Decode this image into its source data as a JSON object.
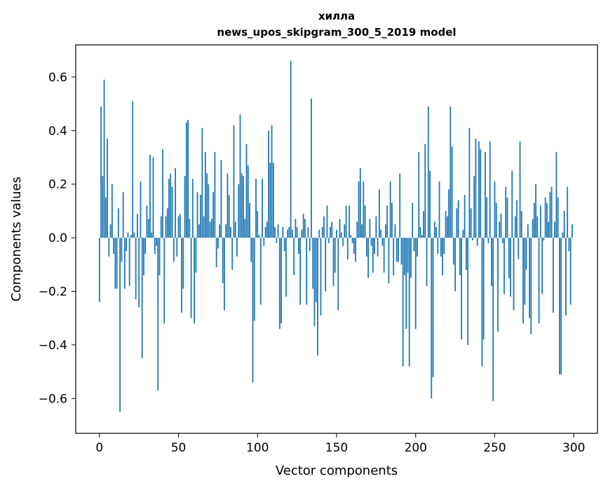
{
  "chart_data": {
    "type": "bar",
    "title": "хилла",
    "subtitle": "news_upos_skipgram_300_5_2019 model",
    "xlabel": "Vector components",
    "ylabel": "Components values",
    "xlim": [
      -15,
      315
    ],
    "ylim": [
      -0.73,
      0.72
    ],
    "xticks": [
      0,
      50,
      100,
      150,
      200,
      250,
      300
    ],
    "yticks": [
      -0.6,
      -0.4,
      -0.2,
      0.0,
      0.2,
      0.4,
      0.6
    ],
    "xtick_labels": [
      "0",
      "50",
      "100",
      "150",
      "200",
      "250",
      "300"
    ],
    "ytick_labels": [
      "−0.6",
      "−0.4",
      "−0.2",
      "0.0",
      "0.2",
      "0.4",
      "0.6"
    ],
    "bar_color": "#1f77b4",
    "grid": false,
    "x": "0..299",
    "values": [
      -0.24,
      0.49,
      0.23,
      0.59,
      0.15,
      0.37,
      -0.07,
      0.05,
      0.2,
      -0.06,
      -0.19,
      -0.19,
      0.11,
      -0.65,
      -0.09,
      0.17,
      -0.19,
      -0.05,
      0.02,
      -0.18,
      0.01,
      0.51,
      0.02,
      -0.23,
      0.09,
      -0.26,
      0.21,
      -0.45,
      -0.14,
      -0.06,
      0.12,
      0.07,
      0.31,
      0.02,
      0.3,
      -0.06,
      -0.03,
      -0.57,
      -0.14,
      0.08,
      0.33,
      -0.32,
      0.08,
      0.11,
      0.22,
      0.24,
      0.19,
      -0.09,
      0.26,
      -0.07,
      0.08,
      0.09,
      -0.28,
      -0.19,
      0.23,
      0.43,
      0.44,
      0.07,
      -0.3,
      0.22,
      -0.32,
      -0.13,
      0.17,
      0.05,
      0.16,
      0.41,
      0.08,
      0.32,
      0.24,
      0.2,
      0.06,
      0.07,
      0.17,
      0.32,
      -0.11,
      -0.04,
      0.05,
      0.29,
      -0.17,
      -0.27,
      0.05,
      0.24,
      0.16,
      0.04,
      -0.12,
      0.42,
      0.06,
      -0.07,
      0.2,
      0.46,
      0.24,
      0.23,
      0.07,
      0.35,
      0.27,
      0.13,
      -0.09,
      -0.54,
      -0.31,
      0.22,
      0.1,
      0.01,
      -0.25,
      0.22,
      -0.03,
      0.04,
      0.06,
      0.4,
      0.28,
      0.42,
      0.28,
      0.04,
      -0.02,
      0.05,
      -0.34,
      -0.32,
      0.04,
      -0.05,
      -0.22,
      0.03,
      0.04,
      0.66,
      0.03,
      -0.14,
      0.07,
      0.04,
      -0.06,
      -0.25,
      0.03,
      0.09,
      0.07,
      -0.25,
      0.04,
      -0.05,
      0.52,
      -0.19,
      -0.33,
      -0.24,
      -0.44,
      0.03,
      -0.29,
      0.04,
      0.08,
      -0.2,
      0.12,
      -0.02,
      0.04,
      0.06,
      -0.18,
      -0.13,
      0.03,
      -0.27,
      0.07,
      0.02,
      -0.03,
      0.05,
      0.12,
      -0.08,
      0.12,
      0.01,
      -0.02,
      -0.06,
      -0.09,
      0.06,
      0.21,
      0.26,
      0.05,
      0.21,
      0.12,
      -0.07,
      -0.15,
      0.07,
      -0.03,
      -0.13,
      -0.06,
      0.08,
      -0.07,
      0.18,
      0.03,
      -0.03,
      -0.13,
      0.05,
      0.12,
      -0.17,
      0.21,
      0.13,
      -0.14,
      0.05,
      -0.09,
      -0.09,
      0.24,
      -0.1,
      -0.48,
      -0.14,
      -0.34,
      -0.13,
      -0.48,
      -0.15,
      0.13,
      -0.05,
      -0.34,
      -0.07,
      0.32,
      0.04,
      0.01,
      0.1,
      0.35,
      -0.18,
      0.49,
      0.25,
      -0.6,
      -0.52,
      0.06,
      0.04,
      -0.06,
      0.21,
      -0.07,
      -0.14,
      -0.06,
      0.1,
      0.08,
      0.18,
      0.49,
      0.34,
      -0.1,
      -0.2,
      0.11,
      0.14,
      -0.14,
      -0.38,
      0.03,
      0.16,
      -0.12,
      -0.4,
      0.41,
      0.11,
      -0.01,
      0.23,
      0.37,
      -0.03,
      0.36,
      0.33,
      -0.48,
      -0.38,
      0.32,
      0.15,
      -0.02,
      0.36,
      -0.18,
      -0.61,
      0.21,
      0.13,
      -0.35,
      0.06,
      0.09,
      -0.02,
      -0.21,
      0.19,
      0.15,
      -0.15,
      -0.22,
      0.25,
      -0.27,
      0.08,
      0.14,
      -0.08,
      0.36,
      0.1,
      -0.32,
      -0.25,
      -0.12,
      0.05,
      -0.3,
      -0.36,
      0.07,
      0.13,
      0.2,
      0.08,
      -0.32,
      0.12,
      -0.21,
      -0.01,
      0.15,
      0.13,
      0.06,
      0.17,
      0.19,
      -0.28,
      0.06,
      0.32,
      0.15,
      -0.51,
      -0.51,
      0.02,
      0.1,
      -0.29,
      0.19,
      -0.05,
      -0.25,
      0.05
    ]
  }
}
